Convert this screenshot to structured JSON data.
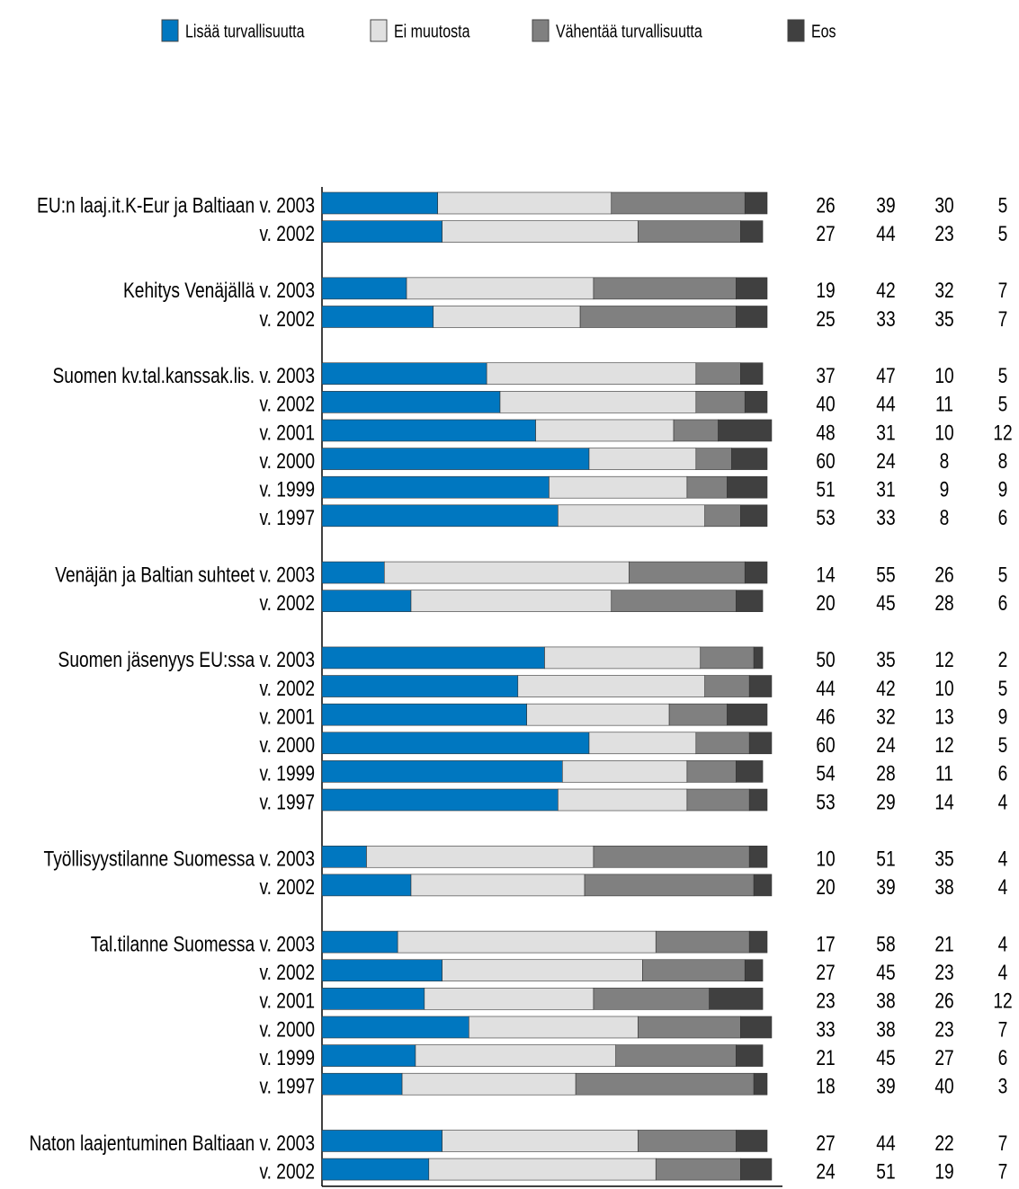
{
  "chart_data": {
    "type": "stacked-barh",
    "categories": [
      "EU:n laaj.it.K-Eur ja Baltiaan v. 2003",
      "v. 2002",
      "Kehitys Venäjällä v. 2003",
      "v. 2002",
      "Suomen kv.tal.kanssak.lis. v. 2003",
      "v. 2002",
      "v. 2001",
      "v. 2000",
      "v. 1999",
      "v. 1997",
      "Venäjän ja Baltian suhteet v. 2003",
      "v. 2002",
      "Suomen jäsenyys EU:ssa v. 2003",
      "v. 2002",
      "v. 2001",
      "v. 2000",
      "v. 1999",
      "v. 1997",
      "Työllisyystilanne Suomessa v. 2003",
      "v. 2002",
      "Tal.tilanne Suomessa v. 2003",
      "v. 2002",
      "v. 2001",
      "v. 2000",
      "v. 1999",
      "v. 1997",
      "Naton laajentuminen Baltiaan v. 2003",
      "v. 2002"
    ],
    "series": [
      {
        "name": "Lisää turvallisuutta",
        "color": "#0077c0",
        "values": [
          26,
          27,
          19,
          25,
          37,
          40,
          48,
          60,
          51,
          53,
          14,
          20,
          50,
          44,
          46,
          60,
          54,
          53,
          10,
          20,
          17,
          27,
          23,
          33,
          21,
          18,
          27,
          24
        ]
      },
      {
        "name": "Ei muutosta",
        "color": "#e0e0e0",
        "values": [
          39,
          44,
          42,
          33,
          47,
          44,
          31,
          24,
          31,
          33,
          55,
          45,
          35,
          42,
          32,
          24,
          28,
          29,
          51,
          39,
          58,
          45,
          38,
          38,
          45,
          39,
          44,
          51
        ]
      },
      {
        "name": "Vähentää turvallisuutta",
        "color": "#808080",
        "values": [
          30,
          23,
          32,
          35,
          10,
          11,
          10,
          8,
          9,
          8,
          26,
          28,
          12,
          10,
          13,
          12,
          11,
          14,
          35,
          38,
          21,
          23,
          26,
          23,
          27,
          40,
          22,
          19
        ]
      },
      {
        "name": "Eos",
        "color": "#404040",
        "values": [
          5,
          5,
          7,
          7,
          5,
          5,
          12,
          8,
          9,
          6,
          5,
          6,
          2,
          5,
          9,
          5,
          6,
          4,
          4,
          4,
          4,
          4,
          12,
          7,
          6,
          3,
          7,
          7
        ]
      }
    ],
    "xlim": [
      0,
      100
    ]
  }
}
